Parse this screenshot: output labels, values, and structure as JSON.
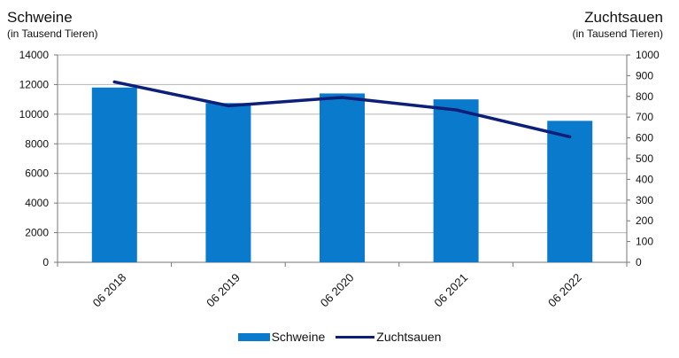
{
  "chart_data": {
    "type": "bar",
    "title_left": "Schweine",
    "subtitle_left": "(in Tausend Tieren)",
    "title_right": "Zuchtsauen",
    "subtitle_right": "(in Tausend Tieren)",
    "categories": [
      "06 2018",
      "06 2019",
      "06 2020",
      "06 2021",
      "06 2022"
    ],
    "series": [
      {
        "name": "Schweine",
        "type": "bar",
        "axis": "left",
        "color": "#0a7acc",
        "values": [
          11800,
          10750,
          11400,
          11000,
          9550
        ]
      },
      {
        "name": "Zuchtsauen",
        "type": "line",
        "axis": "right",
        "color": "#0d1f78",
        "values": [
          870,
          755,
          795,
          735,
          605
        ]
      }
    ],
    "y_left": {
      "min": 0,
      "max": 14000,
      "ticks": [
        0,
        2000,
        4000,
        6000,
        8000,
        10000,
        12000,
        14000
      ]
    },
    "y_right": {
      "min": 0,
      "max": 1000,
      "ticks": [
        0,
        100,
        200,
        300,
        400,
        500,
        600,
        700,
        800,
        900,
        1000
      ]
    },
    "grid": "horizontal",
    "legend": "bottom"
  }
}
